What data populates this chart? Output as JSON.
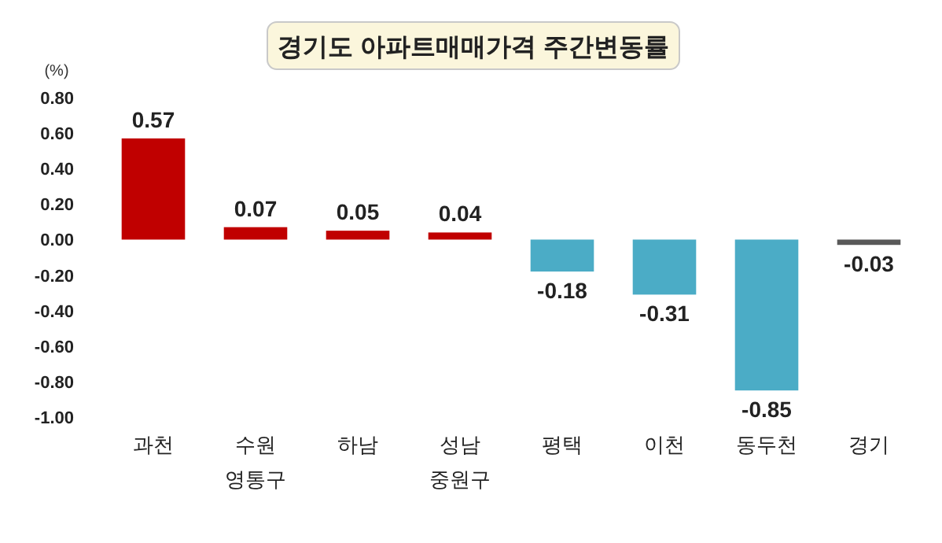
{
  "chart_data": {
    "type": "bar",
    "title": "경기도 아파트매매가격 주간변동률",
    "ylabel": "(%)",
    "categories": [
      "과천",
      "수원\n영통구",
      "하남",
      "성남\n중원구",
      "평택",
      "이천",
      "동두천",
      "경기"
    ],
    "values": [
      0.57,
      0.07,
      0.05,
      0.04,
      -0.18,
      -0.31,
      -0.85,
      -0.03
    ],
    "colors": [
      "#c00000",
      "#c00000",
      "#c00000",
      "#c00000",
      "#4bacc6",
      "#4bacc6",
      "#4bacc6",
      "#595959"
    ],
    "ylim": [
      -1.0,
      0.8
    ],
    "yticks": [
      {
        "value": 0.8,
        "label": "0.80"
      },
      {
        "value": 0.6,
        "label": "0.60"
      },
      {
        "value": 0.4,
        "label": "0.40"
      },
      {
        "value": 0.2,
        "label": "0.20"
      },
      {
        "value": 0,
        "label": "0.00"
      },
      {
        "value": -0.2,
        "label": "-0.20"
      },
      {
        "value": -0.4,
        "label": "-0.40"
      },
      {
        "value": -0.6,
        "label": "-0.60"
      },
      {
        "value": -0.8,
        "label": "-0.80"
      },
      {
        "value": -1.0,
        "label": "-1.00"
      }
    ],
    "data_labels": true
  }
}
